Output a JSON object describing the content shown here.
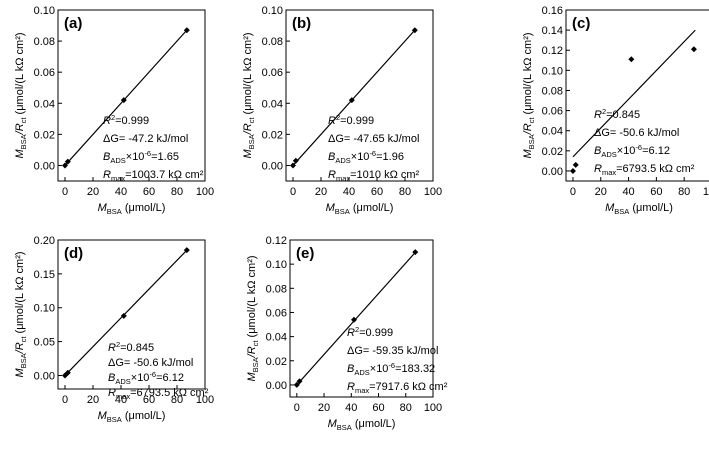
{
  "chart_data": [
    {
      "type": "scatter",
      "panel_label": "(a)",
      "xlabel": {
        "main": "M",
        "sub": "BSA",
        "rest": " (μmol/L)"
      },
      "ylabel": {
        "m": "M",
        "msub": "BSA",
        "mid": "/R",
        "rsub": "ct",
        "rest": " (μmol/(L kΩ cm²)"
      },
      "x_ticks": [
        "0",
        "20",
        "40",
        "60",
        "80",
        "100"
      ],
      "y_ticks": [
        "0.00",
        "0.02",
        "0.04",
        "0.06",
        "0.08",
        "0.10"
      ],
      "xlim": [
        -5,
        100
      ],
      "ylim": [
        -0.01,
        0.1
      ],
      "points": [
        [
          0,
          0.0
        ],
        [
          2,
          0.0025
        ],
        [
          42,
          0.042
        ],
        [
          87,
          0.087
        ]
      ],
      "fit_line": [
        [
          0,
          0.0
        ],
        [
          88,
          0.088
        ]
      ],
      "annotations": {
        "r2": {
          "main": "R",
          "sup": "2",
          "rest": "=0.999"
        },
        "dg": "ΔG= -47.2 kJ/mol",
        "bads": {
          "main": "B",
          "sub": "ADS",
          "mid": "×10",
          "sup": "-6",
          "rest": "=1.65"
        },
        "rmax": {
          "main": "R",
          "sub": "max",
          "rest": "=1003.7 kΩ cm²"
        }
      }
    },
    {
      "type": "scatter",
      "panel_label": "(b)",
      "xlabel": {
        "main": "M",
        "sub": "BSA",
        "rest": " (μmol/L)"
      },
      "ylabel": {
        "m": "M",
        "msub": "BSA",
        "mid": "/R",
        "rsub": "ct",
        "rest": " (μmol/(L kΩ cm²)"
      },
      "x_ticks": [
        "0",
        "20",
        "40",
        "60",
        "80",
        "100"
      ],
      "y_ticks": [
        "0.00",
        "0.02",
        "0.04",
        "0.06",
        "0.08",
        "0.10"
      ],
      "xlim": [
        -5,
        100
      ],
      "ylim": [
        -0.01,
        0.1
      ],
      "points": [
        [
          0,
          0.0
        ],
        [
          2,
          0.003
        ],
        [
          42,
          0.042
        ],
        [
          87,
          0.087
        ]
      ],
      "fit_line": [
        [
          0,
          0.0
        ],
        [
          88,
          0.088
        ]
      ],
      "annotations": {
        "r2": {
          "main": "R",
          "sup": "2",
          "rest": "=0.999"
        },
        "dg": "ΔG= -47.65 kJ/mol",
        "bads": {
          "main": "B",
          "sub": "ADS",
          "mid": "×10",
          "sup": "-6",
          "rest": "=1.96"
        },
        "rmax": {
          "main": "R",
          "sub": "max",
          "rest": "=1010 kΩ cm²"
        }
      }
    },
    {
      "type": "scatter",
      "panel_label": "(c)",
      "xlabel": {
        "main": "M",
        "sub": "BSA",
        "rest": " (μmol/L)"
      },
      "ylabel": {
        "m": "M",
        "msub": "BSA",
        "mid": "/R",
        "rsub": "ct",
        "rest": " (μmol/(L kΩ cm²)"
      },
      "x_ticks": [
        "0",
        "20",
        "40",
        "60",
        "80",
        "100"
      ],
      "y_ticks": [
        "0.00",
        "0.02",
        "0.04",
        "0.06",
        "0.08",
        "0.10",
        "0.12",
        "0.14",
        "0.16"
      ],
      "xlim": [
        -5,
        100
      ],
      "ylim": [
        -0.01,
        0.16
      ],
      "points": [
        [
          0,
          0.0
        ],
        [
          2,
          0.006
        ],
        [
          42,
          0.111
        ],
        [
          87,
          0.121
        ]
      ],
      "fit_line": [
        [
          0,
          0.014
        ],
        [
          88,
          0.14
        ]
      ],
      "annotations": {
        "r2": {
          "main": "R",
          "sup": "2",
          "rest": "=0.845"
        },
        "dg": "ΔG= -50.6 kJ/mol",
        "bads": {
          "main": "B",
          "sub": "ADS",
          "mid": "×10",
          "sup": "-6",
          "rest": "=6.12"
        },
        "rmax": {
          "main": "R",
          "sub": "max",
          "rest": "=6793.5 kΩ cm²"
        }
      }
    },
    {
      "type": "scatter",
      "panel_label": "(d)",
      "xlabel": {
        "main": "M",
        "sub": "BSA",
        "rest": " (μmol/L)"
      },
      "ylabel": {
        "m": "M",
        "msub": "BSA",
        "mid": "/R",
        "rsub": "ct",
        "rest": " (μmol/(L kΩ cm²)"
      },
      "x_ticks": [
        "0",
        "20",
        "40",
        "60",
        "80",
        "100"
      ],
      "y_ticks": [
        "0.00",
        "0.05",
        "0.10",
        "0.15",
        "0.20"
      ],
      "xlim": [
        -5,
        100
      ],
      "ylim": [
        -0.02,
        0.2
      ],
      "points": [
        [
          0,
          0.0
        ],
        [
          2,
          0.004
        ],
        [
          42,
          0.088
        ],
        [
          87,
          0.185
        ]
      ],
      "fit_line": [
        [
          0,
          0.0
        ],
        [
          88,
          0.187
        ]
      ],
      "annotations": {
        "r2": {
          "main": "R",
          "sup": "2",
          "rest": "=0.845"
        },
        "dg": "ΔG= -50.6 kJ/mol",
        "bads": {
          "main": "B",
          "sub": "ADS",
          "mid": "×10",
          "sup": "-6",
          "rest": "=6.12"
        },
        "rmax": {
          "main": "R",
          "sub": "max",
          "rest": "=6793.5 kΩ cm²"
        }
      }
    },
    {
      "type": "scatter",
      "panel_label": "(e)",
      "xlabel": {
        "main": "M",
        "sub": "BSA",
        "rest": " (μmol/L)"
      },
      "ylabel": {
        "m": "M",
        "msub": "BSA",
        "mid": "/R",
        "rsub": "ct",
        "rest": " (μmol/(L kΩ cm²)"
      },
      "x_ticks": [
        "0",
        "20",
        "40",
        "60",
        "80",
        "100"
      ],
      "y_ticks": [
        "0.00",
        "0.02",
        "0.04",
        "0.06",
        "0.08",
        "0.10",
        "0.12"
      ],
      "xlim": [
        -5,
        100
      ],
      "ylim": [
        -0.01,
        0.12
      ],
      "points": [
        [
          0,
          0.0
        ],
        [
          2,
          0.003
        ],
        [
          42,
          0.054
        ],
        [
          87,
          0.11
        ]
      ],
      "fit_line": [
        [
          0,
          0.0
        ],
        [
          88,
          0.111
        ]
      ],
      "annotations": {
        "r2": {
          "main": "R",
          "sup": "2",
          "rest": "=0.999"
        },
        "dg": "ΔG= -59.35 kJ/mol",
        "bads": {
          "main": "B",
          "sub": "ADS",
          "mid": "×10",
          "sup": "-6",
          "rest": "=183.32"
        },
        "rmax": {
          "main": "R",
          "sub": "max",
          "rest": "=7917.6 kΩ cm²"
        }
      }
    }
  ]
}
